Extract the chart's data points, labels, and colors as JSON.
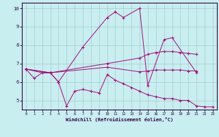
{
  "xlabel": "Windchill (Refroidissement éolien,°C)",
  "bg_color": "#c8eef0",
  "grid_color": "#a0cccc",
  "line_color": "#aa0077",
  "xlim": [
    -0.5,
    23.5
  ],
  "ylim": [
    4.5,
    10.3
  ],
  "yticks": [
    5,
    6,
    7,
    8,
    9,
    10
  ],
  "xticks": [
    0,
    1,
    2,
    3,
    4,
    5,
    6,
    7,
    8,
    9,
    10,
    11,
    12,
    13,
    14,
    15,
    16,
    17,
    18,
    19,
    20,
    21,
    22,
    23
  ],
  "s1_x": [
    0,
    1,
    2,
    3,
    4,
    5,
    6,
    7,
    8,
    9,
    10,
    11,
    12,
    13,
    14,
    15,
    16,
    17,
    18,
    19,
    20,
    21,
    22,
    23
  ],
  "s1_y": [
    6.7,
    6.2,
    6.5,
    6.5,
    6.0,
    4.7,
    5.5,
    5.6,
    5.5,
    5.4,
    6.4,
    6.1,
    5.9,
    5.7,
    5.5,
    5.3,
    5.2,
    5.1,
    5.1,
    5.0,
    5.0,
    4.7,
    4.65,
    4.65
  ],
  "s2_x": [
    0,
    2,
    3,
    4,
    7,
    10,
    11,
    12,
    14,
    15,
    17,
    18,
    21
  ],
  "s2_y": [
    6.7,
    6.5,
    6.5,
    6.0,
    7.9,
    9.5,
    9.8,
    9.5,
    10.0,
    5.8,
    8.3,
    8.4,
    6.5
  ],
  "s3_x": [
    0,
    3,
    10,
    14,
    15,
    16,
    17,
    18,
    19,
    20,
    21
  ],
  "s3_y": [
    6.7,
    6.5,
    7.0,
    7.3,
    7.5,
    7.6,
    7.65,
    7.65,
    7.6,
    7.55,
    7.5
  ],
  "s4_x": [
    0,
    3,
    10,
    14,
    15,
    16,
    17,
    18,
    19,
    20,
    21
  ],
  "s4_y": [
    6.7,
    6.5,
    6.8,
    6.55,
    6.6,
    6.65,
    6.65,
    6.65,
    6.65,
    6.6,
    6.6
  ]
}
